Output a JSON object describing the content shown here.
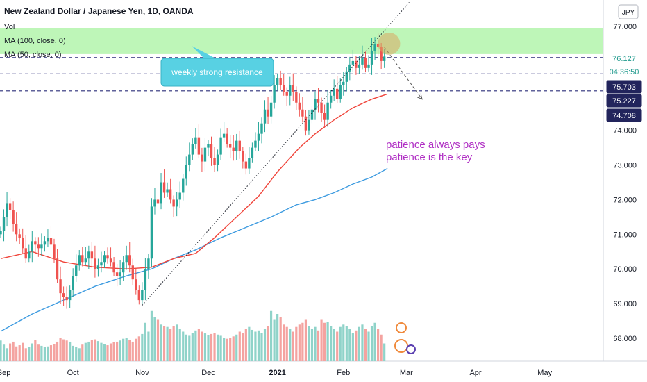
{
  "header": {
    "symbol_title": "New Zealand Dollar / Japanese Yen, 1D, OANDA",
    "indicator_vol": "Vol",
    "indicator_ma100": "MA (100, close, 0)",
    "indicator_ma50": "MA (50, close, 0)",
    "currency_button": "JPY"
  },
  "annotations": {
    "callout": "weekly strong resistance",
    "note_line1": "patience always pays",
    "note_line2": "patience is the key"
  },
  "colors": {
    "up": "#26a69a",
    "down": "#ef5350",
    "vol_up": "#8fd3c9",
    "vol_down": "#f4a3a0",
    "ma50": "#f0443a",
    "ma100": "#3d9be0",
    "zone": "#b7f5b0",
    "callout": "#58d1e3",
    "note": "#b02fc4",
    "dashed": "#2b2f7a",
    "badge_dark": "#22245c",
    "badge_last": "#229b8e"
  },
  "chart_data": {
    "type": "candlestick",
    "ylim": [
      67.4,
      77.8
    ],
    "yticks": [
      {
        "value": 77.0,
        "label": "77.000"
      },
      {
        "value": 76.0,
        "label": ""
      },
      {
        "value": 75.0,
        "label": ""
      },
      {
        "value": 74.0,
        "label": "74.000"
      },
      {
        "value": 73.0,
        "label": "73.000"
      },
      {
        "value": 72.0,
        "label": "72.000"
      },
      {
        "value": 71.0,
        "label": "71.000"
      },
      {
        "value": 70.0,
        "label": "70.000"
      },
      {
        "value": 69.0,
        "label": "69.000"
      },
      {
        "value": 68.0,
        "label": "68.000"
      }
    ],
    "xticks": [
      {
        "bar": 1,
        "label": "Sep"
      },
      {
        "bar": 23,
        "label": "Oct"
      },
      {
        "bar": 45,
        "label": "Nov"
      },
      {
        "bar": 66,
        "label": "Dec"
      },
      {
        "bar": 88,
        "label": "2021"
      },
      {
        "bar": 109,
        "label": "Feb"
      },
      {
        "bar": 129,
        "label": "Mar"
      },
      {
        "bar": 151,
        "label": "Apr"
      },
      {
        "bar": 173,
        "label": "May"
      }
    ],
    "price_badges": [
      {
        "value": 76.127,
        "label": "76.127",
        "kind": "last"
      },
      {
        "value": 75.7,
        "label": "04:36:50",
        "kind": "countdown"
      },
      {
        "value": 75.703,
        "label": "75.703",
        "kind": "level"
      },
      {
        "value": 75.227,
        "label": "75.227",
        "kind": "level"
      },
      {
        "value": 74.708,
        "label": "74.708",
        "kind": "level"
      }
    ],
    "resistance_zone": [
      76.2,
      76.95
    ],
    "dashed_levels": [
      76.1,
      75.63,
      75.14
    ],
    "trendline": {
      "from": {
        "bar": 45,
        "value": 68.95
      },
      "to": {
        "bar": 130,
        "value": 77.7
      }
    },
    "projection": {
      "from": {
        "bar": 122,
        "value": 76.4
      },
      "to": {
        "bar": 134,
        "value": 74.9
      }
    },
    "ma50": [
      [
        0,
        70.3
      ],
      [
        10,
        70.5
      ],
      [
        20,
        70.2
      ],
      [
        30,
        70.05
      ],
      [
        40,
        70.0
      ],
      [
        48,
        70.05
      ],
      [
        55,
        70.3
      ],
      [
        62,
        70.45
      ],
      [
        68,
        70.9
      ],
      [
        75,
        71.5
      ],
      [
        82,
        72.1
      ],
      [
        88,
        72.8
      ],
      [
        95,
        73.5
      ],
      [
        100,
        73.9
      ],
      [
        106,
        74.3
      ],
      [
        112,
        74.65
      ],
      [
        118,
        74.9
      ],
      [
        123,
        75.05
      ]
    ],
    "ma100": [
      [
        0,
        68.2
      ],
      [
        10,
        68.7
      ],
      [
        20,
        69.1
      ],
      [
        30,
        69.5
      ],
      [
        40,
        69.8
      ],
      [
        48,
        70.0
      ],
      [
        55,
        70.3
      ],
      [
        62,
        70.55
      ],
      [
        70,
        70.9
      ],
      [
        78,
        71.2
      ],
      [
        86,
        71.5
      ],
      [
        94,
        71.85
      ],
      [
        100,
        72.0
      ],
      [
        106,
        72.2
      ],
      [
        112,
        72.45
      ],
      [
        118,
        72.65
      ],
      [
        123,
        72.9
      ]
    ],
    "closes": [
      71.1,
      71.5,
      71.9,
      71.7,
      71.3,
      71.0,
      70.9,
      70.6,
      70.3,
      70.5,
      70.8,
      70.7,
      70.6,
      70.7,
      70.8,
      70.9,
      70.7,
      70.3,
      69.7,
      69.3,
      69.2,
      69.1,
      69.4,
      69.8,
      70.1,
      70.4,
      70.2,
      70.3,
      70.5,
      70.3,
      70.0,
      70.1,
      70.2,
      70.4,
      70.3,
      70.2,
      69.9,
      69.8,
      69.9,
      70.2,
      70.4,
      70.1,
      69.7,
      69.4,
      69.1,
      69.4,
      70.0,
      70.3,
      71.8,
      72.0,
      71.9,
      72.5,
      72.2,
      72.3,
      72.0,
      71.8,
      72.0,
      72.2,
      72.6,
      73.0,
      73.3,
      73.6,
      73.8,
      73.3,
      73.1,
      73.5,
      73.6,
      73.2,
      73.0,
      73.3,
      73.8,
      73.9,
      73.6,
      73.5,
      73.4,
      73.7,
      73.4,
      73.1,
      72.9,
      73.2,
      73.5,
      73.7,
      73.9,
      74.2,
      74.6,
      74.4,
      74.8,
      75.3,
      75.5,
      75.3,
      75.1,
      75.0,
      75.3,
      75.1,
      74.8,
      74.6,
      74.4,
      74.0,
      74.3,
      74.6,
      74.9,
      74.8,
      74.5,
      74.3,
      74.8,
      75.0,
      75.2,
      74.9,
      75.3,
      75.4,
      75.7,
      75.9,
      76.0,
      75.8,
      75.9,
      76.1,
      75.8,
      75.9,
      76.3,
      76.5,
      76.4,
      76.0,
      76.13
    ],
    "volumes": [
      0.35,
      0.28,
      0.22,
      0.3,
      0.33,
      0.25,
      0.27,
      0.31,
      0.22,
      0.24,
      0.3,
      0.36,
      0.28,
      0.26,
      0.24,
      0.25,
      0.27,
      0.29,
      0.33,
      0.39,
      0.37,
      0.35,
      0.33,
      0.26,
      0.24,
      0.22,
      0.28,
      0.31,
      0.33,
      0.36,
      0.37,
      0.34,
      0.31,
      0.29,
      0.27,
      0.3,
      0.32,
      0.33,
      0.35,
      0.38,
      0.4,
      0.36,
      0.33,
      0.38,
      0.42,
      0.46,
      0.65,
      0.5,
      0.85,
      0.75,
      0.7,
      0.62,
      0.6,
      0.58,
      0.55,
      0.6,
      0.62,
      0.55,
      0.5,
      0.45,
      0.43,
      0.48,
      0.52,
      0.55,
      0.5,
      0.47,
      0.44,
      0.46,
      0.48,
      0.45,
      0.43,
      0.4,
      0.38,
      0.4,
      0.42,
      0.45,
      0.5,
      0.48,
      0.55,
      0.58,
      0.53,
      0.5,
      0.52,
      0.48,
      0.55,
      0.6,
      0.85,
      0.7,
      0.8,
      0.75,
      0.62,
      0.58,
      0.55,
      0.5,
      0.58,
      0.62,
      0.65,
      0.7,
      0.6,
      0.55,
      0.58,
      0.52,
      0.7,
      0.65,
      0.66,
      0.6,
      0.55,
      0.5,
      0.58,
      0.62,
      0.6,
      0.55,
      0.48,
      0.52,
      0.58,
      0.62,
      0.55,
      0.5,
      0.6,
      0.65,
      0.55,
      0.45,
      0.3
    ]
  }
}
